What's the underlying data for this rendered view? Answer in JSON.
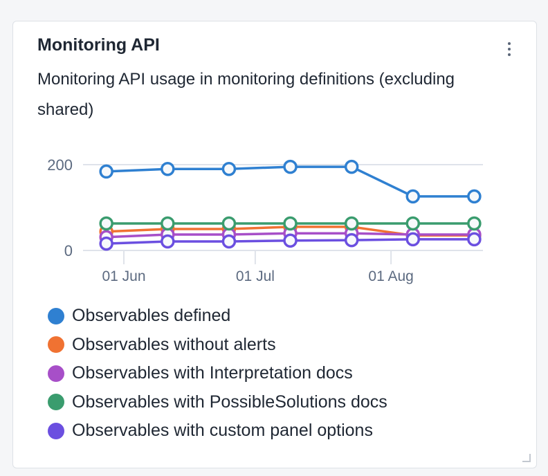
{
  "card": {
    "title": "Monitoring API",
    "subtitle": "Monitoring API usage in monitoring definitions (excluding shared)"
  },
  "chart_data": {
    "type": "line",
    "title": "Monitoring API",
    "x": [
      "2023-05-28",
      "2023-06-11",
      "2023-06-25",
      "2023-07-09",
      "2023-07-23",
      "2023-08-06",
      "2023-08-20"
    ],
    "x_ticks": [
      {
        "date": "2023-06-01",
        "label": "01 Jun"
      },
      {
        "date": "2023-07-01",
        "label": "01 Jul"
      },
      {
        "date": "2023-08-01",
        "label": "01 Aug"
      }
    ],
    "y_ticks": [
      0,
      200
    ],
    "ylim": [
      0,
      200
    ],
    "grid": true,
    "legend_position": "bottom",
    "series": [
      {
        "name": "Observables defined",
        "color": "#2f80d1",
        "values": [
          184,
          190,
          190,
          195,
          195,
          126,
          126
        ]
      },
      {
        "name": "Observables without alerts",
        "color": "#f07232",
        "values": [
          44,
          50,
          50,
          55,
          55,
          35,
          35
        ]
      },
      {
        "name": "Observables with Interpretation docs",
        "color": "#a74fc8",
        "values": [
          31,
          37,
          37,
          40,
          40,
          37,
          37
        ]
      },
      {
        "name": "Observables with PossibleSolutions docs",
        "color": "#3a9c6e",
        "values": [
          63,
          63,
          63,
          63,
          63,
          63,
          63
        ]
      },
      {
        "name": "Observables with custom panel options",
        "color": "#6b4fe0",
        "values": [
          16,
          21,
          21,
          23,
          24,
          26,
          26
        ]
      }
    ]
  }
}
